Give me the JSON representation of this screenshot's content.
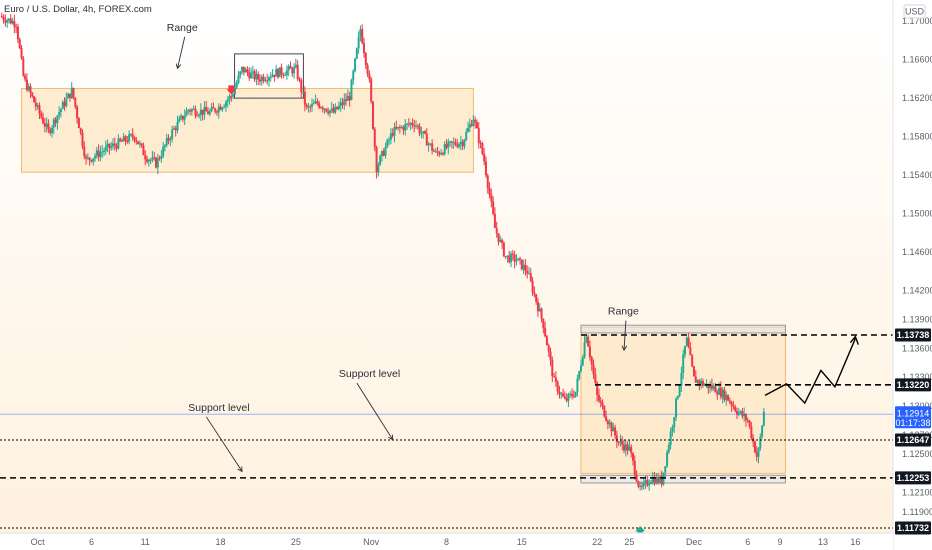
{
  "header": {
    "symbol_title": "Euro / U.S. Dollar, 4h, FOREX.com"
  },
  "chart_data": {
    "type": "candlestick",
    "currency": "USD",
    "ylim": [
      1.1168,
      1.1722
    ],
    "y_ticks": [
      "1.17000",
      "1.16600",
      "1.16200",
      "1.15800",
      "1.15400",
      "1.15000",
      "1.14600",
      "1.14200",
      "1.13900",
      "1.13600",
      "1.13300",
      "1.13000",
      "1.12700",
      "1.12500",
      "1.12100",
      "1.11900"
    ],
    "x_tick_labels": [
      {
        "label": "Oct",
        "day": 0
      },
      {
        "label": "6",
        "day": 5
      },
      {
        "label": "11",
        "day": 10
      },
      {
        "label": "18",
        "day": 17
      },
      {
        "label": "25",
        "day": 24
      },
      {
        "label": "Nov",
        "day": 31
      },
      {
        "label": "8",
        "day": 38
      },
      {
        "label": "15",
        "day": 45
      },
      {
        "label": "22",
        "day": 52
      },
      {
        "label": "25",
        "day": 55
      },
      {
        "label": "Dec",
        "day": 61
      },
      {
        "label": "6",
        "day": 66
      },
      {
        "label": "9",
        "day": 69
      },
      {
        "label": "13",
        "day": 73
      },
      {
        "label": "16",
        "day": 76
      }
    ],
    "xlim_days": [
      -3.5,
      79.5
    ],
    "price_levels": [
      {
        "value": "1.13738",
        "price": 1.13738,
        "style": "dashed-bold"
      },
      {
        "value": "1.13220",
        "price": 1.1322,
        "style": "dashed-bold"
      },
      {
        "value": "1.12647",
        "price": 1.12647,
        "style": "dotted"
      },
      {
        "value": "1.12253",
        "price": 1.12253,
        "style": "dashed-bold"
      },
      {
        "value": "1.11732",
        "price": 1.11732,
        "style": "dotted"
      }
    ],
    "current_price": {
      "value": "1.12914",
      "timer": "01:17:38",
      "price": 1.12914
    },
    "range_boxes": [
      {
        "label": "Range",
        "day_start": -1.5,
        "day_end": 40.5,
        "price_top": 1.163,
        "price_bottom": 1.1543
      },
      {
        "label": "Range",
        "day_start": 50.5,
        "day_end": 69.5,
        "price_top": 1.1382,
        "price_bottom": 1.123
      }
    ],
    "highlight_box": {
      "day_start": 18.3,
      "day_end": 24.7,
      "price_top": 1.1666,
      "price_bottom": 1.162
    },
    "zone_bands": [
      {
        "day_start": 50.5,
        "day_end": 69.5,
        "price_top": 1.1384,
        "price_bottom": 1.1376
      },
      {
        "day_start": 50.5,
        "day_end": 69.5,
        "price_top": 1.1228,
        "price_bottom": 1.122
      }
    ],
    "annotations": [
      {
        "text": "Range",
        "day": 12,
        "price": 1.169,
        "arrow_to": [
          13,
          1.1651
        ]
      },
      {
        "text": "Range",
        "day": 53,
        "price": 1.1395,
        "arrow_to": [
          54.5,
          1.1358
        ]
      },
      {
        "text": "Support level",
        "day": 28,
        "price": 1.133,
        "arrow_to": [
          33,
          1.1265
        ]
      },
      {
        "text": "Support level",
        "day": 14,
        "price": 1.1295,
        "arrow_to": [
          19,
          1.1232
        ]
      }
    ],
    "projection_path": [
      [
        67.6,
        1.1311
      ],
      [
        69.6,
        1.1323
      ],
      [
        71.3,
        1.1303
      ],
      [
        72.8,
        1.1337
      ],
      [
        74.1,
        1.132
      ],
      [
        76.0,
        1.137
      ]
    ],
    "markers": [
      {
        "type": "down-arrow",
        "color": "#f23645",
        "day": 18,
        "price": 1.1627
      },
      {
        "type": "up-arrow",
        "color": "#22ab94",
        "day": 56,
        "price": 1.1172
      }
    ],
    "colors": {
      "up": "#22ab94",
      "down": "#f23645",
      "box_fill": "#fde5c0",
      "box_stroke": "#f5b971"
    }
  }
}
